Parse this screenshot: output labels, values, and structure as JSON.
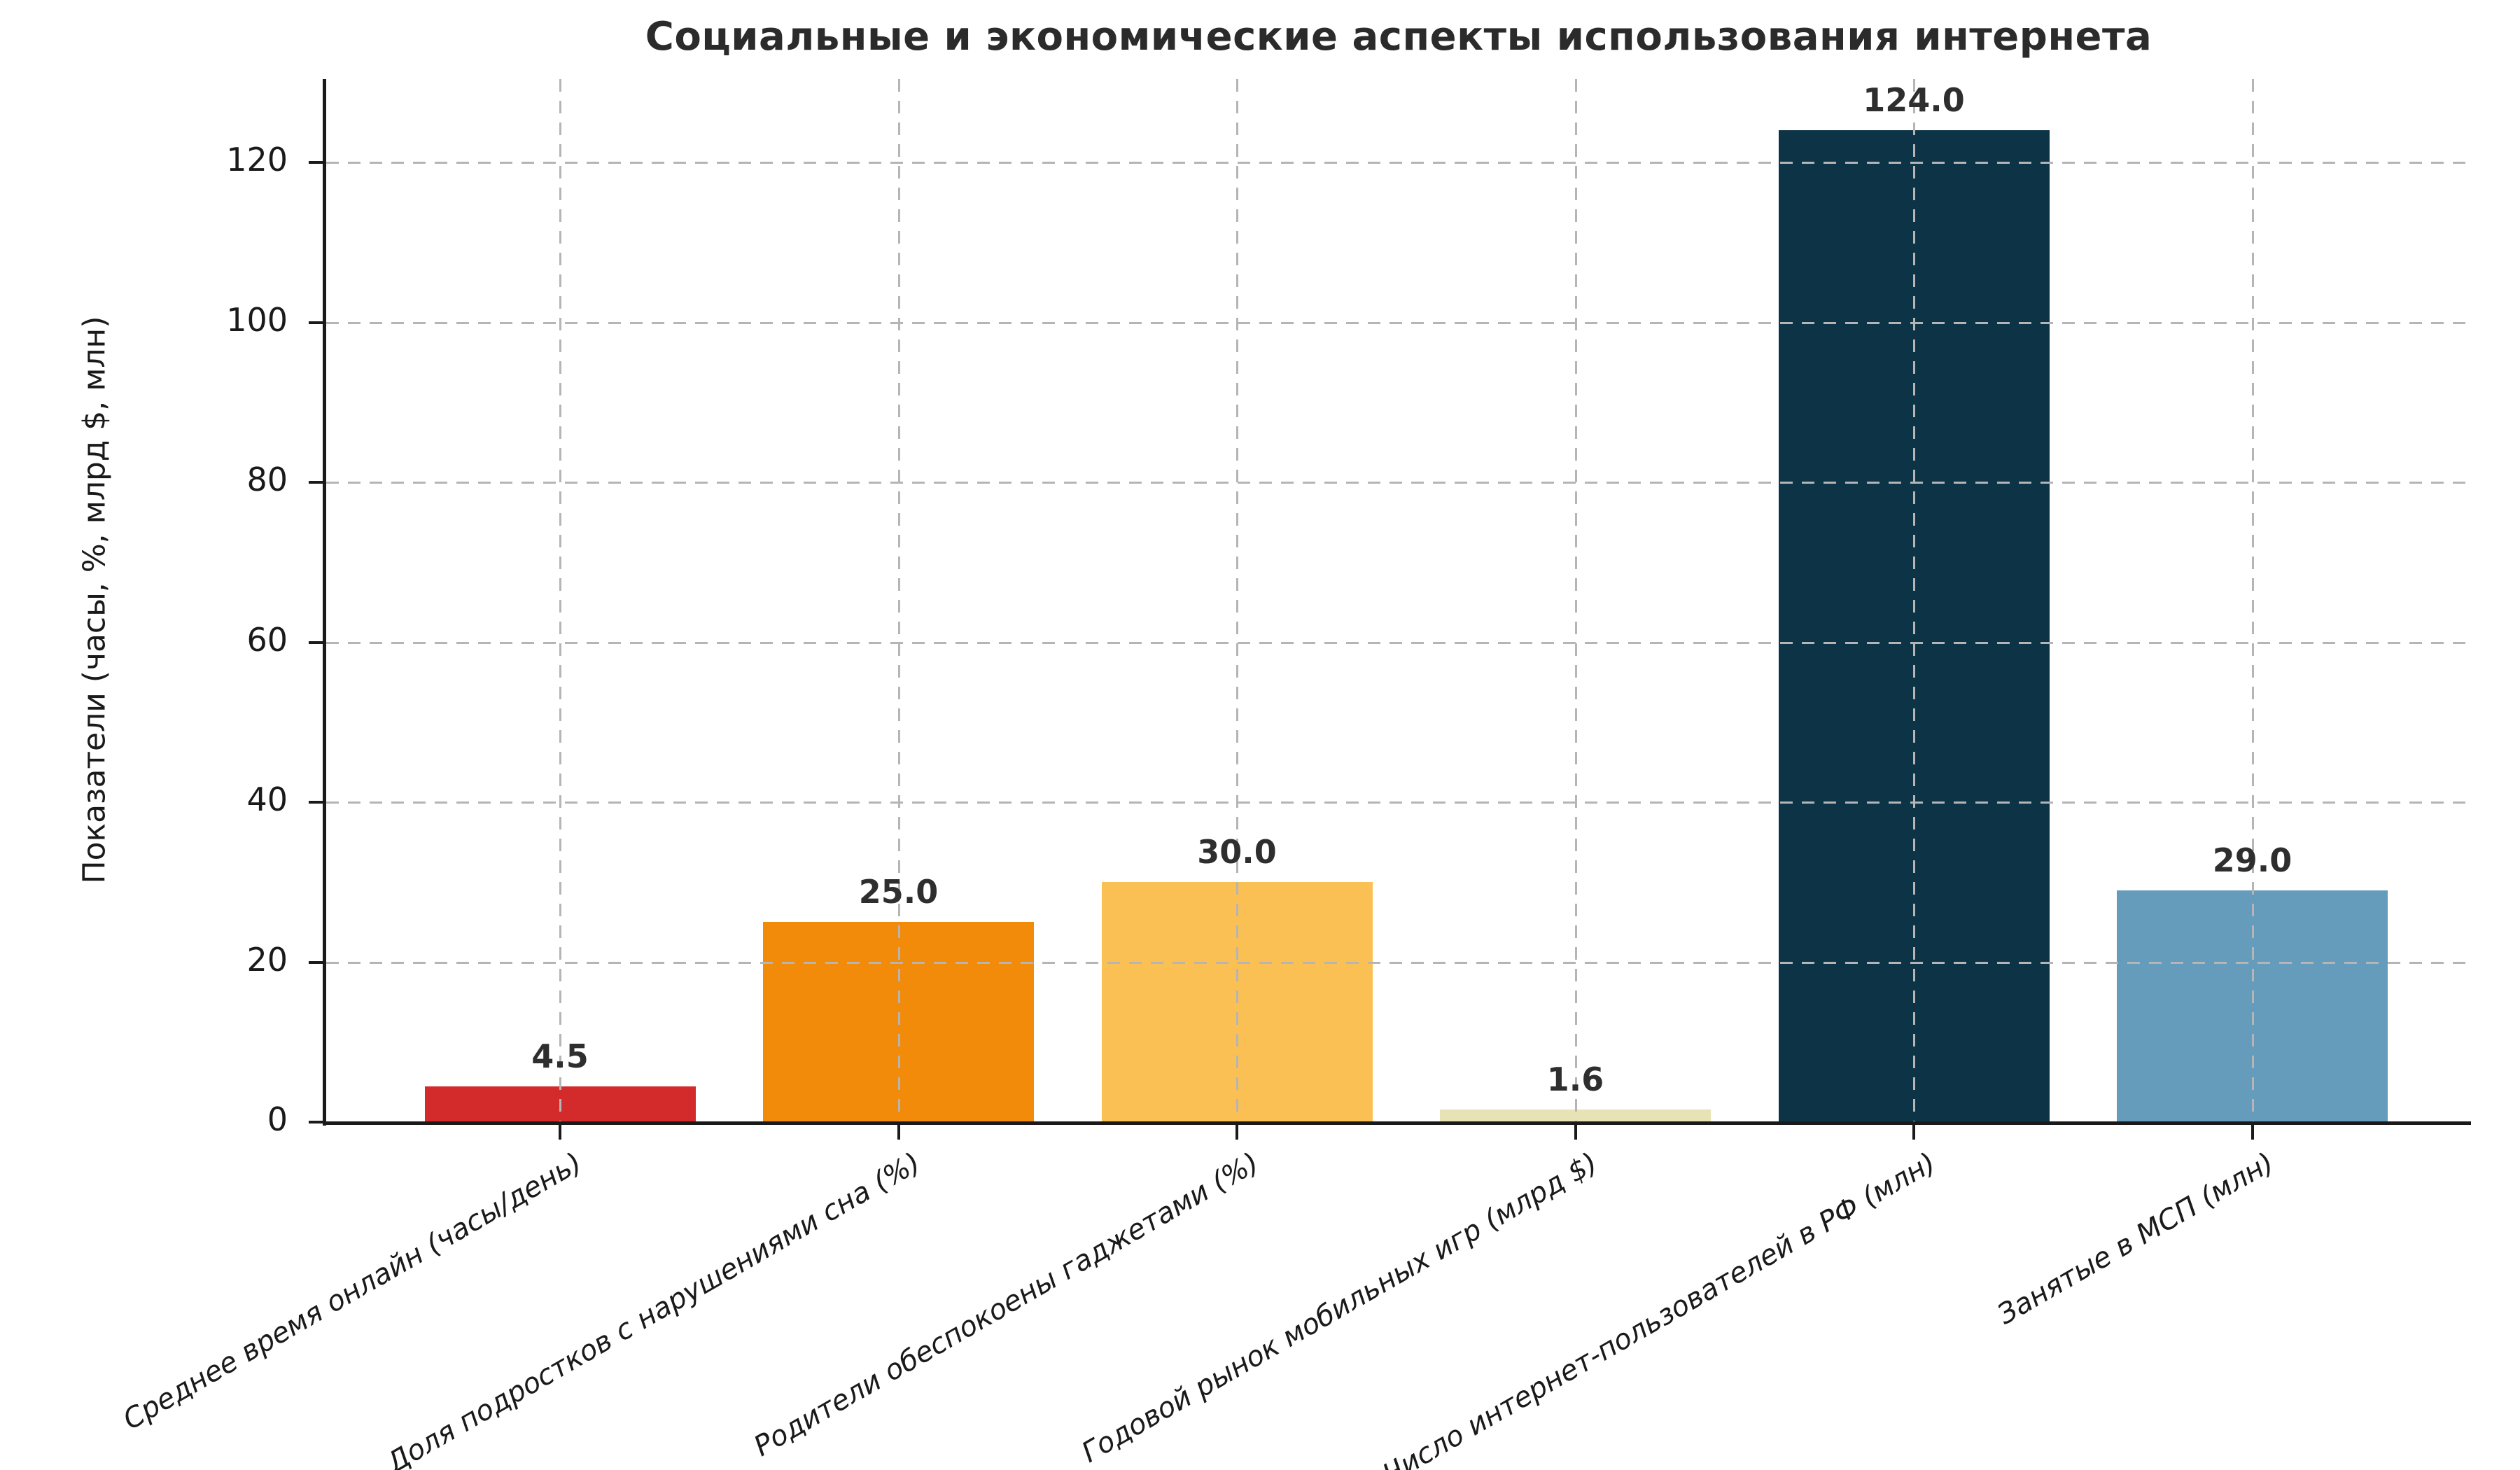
{
  "chart_data": {
    "type": "bar",
    "title": "Социальные и экономические аспекты использования интернета",
    "ylabel": "Показатели (часы, %, млрд $, млн)",
    "xlabel": "",
    "categories": [
      "Среднее время онлайн (часы/день)",
      "Доля подростков с нарушениями сна (%)",
      "Родители обеспокоены гаджетами (%)",
      "Годовой рынок мобильных игр (млрд $)",
      "Число интернет-пользователей в РФ (млн)",
      "Занятые в МСП (млн)"
    ],
    "values": [
      4.5,
      25.0,
      30.0,
      1.6,
      124.0,
      29.0
    ],
    "value_labels": [
      "4.5",
      "25.0",
      "30.0",
      "1.6",
      "124.0",
      "29.0"
    ],
    "bar_colors": [
      "#d32b2b",
      "#f28a0a",
      "#fbc053",
      "#e7e3b4",
      "#0d3347",
      "#659cbc"
    ],
    "yticks": [
      0,
      20,
      40,
      60,
      80,
      100,
      120
    ],
    "ylim": [
      0,
      130.4
    ],
    "grid": "dashed gray, horizontal and vertical, drawn over bars",
    "legend": null,
    "colors": {
      "background": "#ffffff",
      "grid": "#b5b5b5",
      "spine": "#1a1a1a",
      "title_text": "#2b2b2b",
      "tick_text": "#1a1a1a",
      "value_text": "#2e2e2e"
    }
  }
}
